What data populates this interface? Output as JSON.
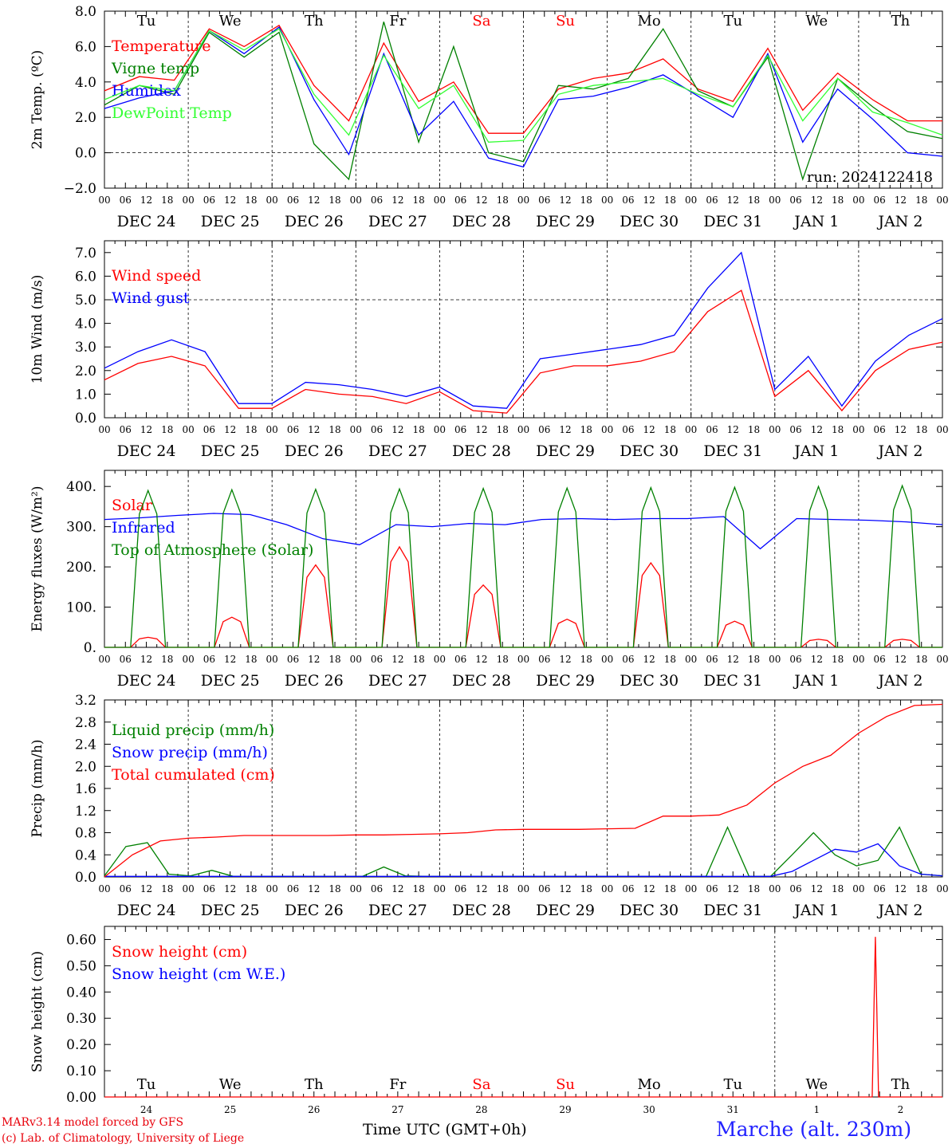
{
  "chart_data": [
    {
      "type": "line",
      "ylabel": "2m Temp. (ºC)",
      "ylim": [
        -2,
        8
      ],
      "yticks": [
        "8.0",
        "6.0",
        "4.0",
        "2.0",
        "0.0",
        "−2.0"
      ],
      "ref_line": 0,
      "weekday_labels": [
        "Tu",
        "We",
        "Th",
        "Fr",
        "Sa",
        "Su",
        "Mo",
        "Tu",
        "We",
        "Th"
      ],
      "date_labels": [
        "DEC 24",
        "DEC 25",
        "DEC 26",
        "DEC 27",
        "DEC 28",
        "DEC 29",
        "DEC 30",
        "DEC 31",
        "JAN  1",
        "JAN  2"
      ],
      "hour_labels": [
        "00",
        "06",
        "12",
        "18"
      ],
      "annotation": "run: 2024122418",
      "x_hours_step": 12,
      "series": [
        {
          "name": "Temperature",
          "color": "#ff0000",
          "values": [
            3.5,
            4.3,
            4.1,
            7.0,
            6.0,
            7.2,
            3.8,
            1.8,
            6.2,
            2.9,
            4.0,
            1.1,
            1.1,
            3.6,
            4.2,
            4.5,
            5.3,
            3.6,
            2.9,
            5.9,
            2.4,
            4.5,
            3.0,
            1.8,
            1.8
          ]
        },
        {
          "name": "Vigne temp",
          "color": "#008000",
          "values": [
            2.7,
            3.8,
            3.3,
            6.8,
            5.4,
            6.8,
            0.5,
            -1.5,
            7.4,
            0.6,
            6.0,
            0.0,
            -0.5,
            3.8,
            3.6,
            4.2,
            7.0,
            3.5,
            2.6,
            5.4,
            -1.5,
            4.2,
            2.6,
            1.2,
            0.8
          ]
        },
        {
          "name": "Humidex",
          "color": "#0000ff",
          "values": [
            2.5,
            3.1,
            3.5,
            6.9,
            5.6,
            7.1,
            3.0,
            -0.1,
            5.6,
            1.0,
            2.9,
            -0.3,
            -0.8,
            3.0,
            3.2,
            3.7,
            4.4,
            3.2,
            2.0,
            5.6,
            0.6,
            3.6,
            1.9,
            0.0,
            -0.2
          ]
        },
        {
          "name": "DewPoint Temp",
          "color": "#33ff33",
          "values": [
            3.0,
            3.8,
            3.5,
            6.9,
            5.8,
            7.0,
            3.3,
            1.0,
            5.5,
            2.5,
            3.8,
            0.6,
            0.7,
            3.3,
            3.8,
            4.0,
            4.2,
            3.3,
            2.6,
            5.5,
            1.8,
            4.2,
            2.3,
            1.7,
            1.0
          ]
        }
      ]
    },
    {
      "type": "line",
      "ylabel": "10m Wind (m/s)",
      "ylim": [
        0,
        7.5
      ],
      "yticks": [
        "7.0",
        "6.0",
        "5.0",
        "4.0",
        "3.0",
        "2.0",
        "1.0",
        "0.0"
      ],
      "ref_line": 5,
      "date_labels": [
        "DEC 24",
        "DEC 25",
        "DEC 26",
        "DEC 27",
        "DEC 28",
        "DEC 29",
        "DEC 30",
        "DEC 31",
        "JAN  1",
        "JAN  2"
      ],
      "hour_labels": [
        "00",
        "06",
        "12",
        "18"
      ],
      "x_hours_step": 12,
      "series": [
        {
          "name": "Wind speed",
          "color": "#ff0000",
          "values": [
            1.6,
            2.3,
            2.6,
            2.2,
            0.4,
            0.4,
            1.2,
            1.0,
            0.9,
            0.6,
            1.1,
            0.3,
            0.2,
            1.9,
            2.2,
            2.2,
            2.4,
            2.8,
            4.5,
            5.4,
            0.9,
            2.0,
            0.3,
            2.0,
            2.9,
            3.2
          ]
        },
        {
          "name": "Wind gust",
          "color": "#0000ff",
          "values": [
            2.1,
            2.8,
            3.3,
            2.8,
            0.6,
            0.6,
            1.5,
            1.4,
            1.2,
            0.9,
            1.3,
            0.5,
            0.4,
            2.5,
            2.7,
            2.9,
            3.1,
            3.5,
            5.5,
            7.0,
            1.2,
            2.6,
            0.5,
            2.4,
            3.5,
            4.2
          ]
        }
      ]
    },
    {
      "type": "line",
      "ylabel": "Energy fluxes (W/m²)",
      "ylim": [
        0,
        440
      ],
      "yticks": [
        "400.",
        "300.",
        "200.",
        "100.",
        "0."
      ],
      "date_labels": [
        "DEC 24",
        "DEC 25",
        "DEC 26",
        "DEC 27",
        "DEC 28",
        "DEC 29",
        "DEC 30",
        "DEC 31",
        "JAN  1",
        "JAN  2"
      ],
      "hour_labels": [
        "00",
        "06",
        "12",
        "18"
      ],
      "x_hours_step": 12,
      "series": [
        {
          "name": "Solar",
          "color": "#ff0000",
          "daily_noon_peaks": [
            25,
            75,
            205,
            250,
            155,
            70,
            210,
            65,
            20,
            20
          ]
        },
        {
          "name": "Infrared",
          "color": "#0000ff",
          "values": [
            318,
            322,
            328,
            333,
            330,
            305,
            270,
            255,
            305,
            300,
            308,
            305,
            318,
            320,
            318,
            320,
            320,
            325,
            245,
            320,
            318,
            316,
            312,
            305
          ]
        },
        {
          "name": "Top of Atmosphere (Solar)",
          "color": "#008000",
          "daily_noon_peaks": [
            390,
            392,
            393,
            394,
            395,
            396,
            397,
            398,
            400,
            402
          ]
        }
      ]
    },
    {
      "type": "line",
      "ylabel": "Precip (mm/h)",
      "ylim": [
        0,
        3.2
      ],
      "yticks": [
        "3.2",
        "2.8",
        "2.4",
        "2.0",
        "1.6",
        "1.2",
        "0.8",
        "0.4",
        "0.0"
      ],
      "date_labels": [
        "DEC 24",
        "DEC 25",
        "DEC 26",
        "DEC 27",
        "DEC 28",
        "DEC 29",
        "DEC 30",
        "DEC 31",
        "JAN  1",
        "JAN  2"
      ],
      "hour_labels": [
        "00",
        "06",
        "12",
        "18"
      ],
      "x_hours_step": 12,
      "series": [
        {
          "name": "Liquid precip (mm/h)",
          "color": "#008000",
          "values": [
            0.02,
            0.55,
            0.62,
            0.05,
            0.02,
            0.12,
            0.01,
            0.01,
            0.01,
            0.01,
            0.01,
            0.01,
            0.01,
            0.18,
            0.02,
            0.01,
            0.01,
            0.01,
            0.01,
            0.01,
            0.01,
            0.01,
            0.01,
            0.01,
            0.01,
            0.01,
            0.01,
            0.01,
            0.01,
            0.9,
            0.01,
            0.01,
            0.4,
            0.8,
            0.4,
            0.2,
            0.3,
            0.9,
            0.05,
            0.02
          ]
        },
        {
          "name": "Snow precip (mm/h)",
          "color": "#0000ff",
          "values": [
            0.01,
            0.01,
            0.01,
            0.01,
            0.01,
            0.01,
            0.01,
            0.01,
            0.01,
            0.01,
            0.01,
            0.01,
            0.01,
            0.01,
            0.01,
            0.01,
            0.01,
            0.01,
            0.01,
            0.01,
            0.01,
            0.01,
            0.01,
            0.01,
            0.01,
            0.01,
            0.01,
            0.01,
            0.01,
            0.01,
            0.01,
            0.01,
            0.1,
            0.3,
            0.5,
            0.45,
            0.6,
            0.2,
            0.05,
            0.02
          ]
        },
        {
          "name": "Total cumulated (cm)",
          "color": "#ff0000",
          "values": [
            0.0,
            0.4,
            0.65,
            0.7,
            0.72,
            0.75,
            0.75,
            0.75,
            0.75,
            0.76,
            0.76,
            0.77,
            0.78,
            0.8,
            0.85,
            0.86,
            0.86,
            0.86,
            0.87,
            0.88,
            1.1,
            1.1,
            1.12,
            1.3,
            1.7,
            2.0,
            2.2,
            2.6,
            2.9,
            3.1,
            3.12
          ]
        }
      ]
    },
    {
      "type": "line",
      "ylabel": "Snow height (cm)",
      "ylim": [
        0,
        0.65
      ],
      "yticks": [
        "0.60",
        "0.50",
        "0.40",
        "0.30",
        "0.20",
        "0.10",
        "0.00"
      ],
      "weekday_labels": [
        "Tu",
        "We",
        "Th",
        "Fr",
        "Sa",
        "Su",
        "Mo",
        "Tu",
        "We",
        "Th"
      ],
      "day_numbers": [
        "24",
        "25",
        "26",
        "27",
        "28",
        "29",
        "30",
        "31",
        "1",
        "2"
      ],
      "x_hours_step": 24,
      "series": [
        {
          "name": "Snow height (cm)",
          "color": "#ff0000",
          "spike": {
            "day": 9.2,
            "value": 0.61
          }
        },
        {
          "name": "Snow height (cm W.E.)",
          "color": "#0000ff"
        }
      ]
    }
  ],
  "weekend_color": "#ff0000",
  "footer": {
    "credit_line1": "MARv3.14 model forced by GFS",
    "credit_line2": "(c) Lab. of Climatology, University of Liege",
    "axis_label": "Time UTC (GMT+0h)",
    "station": "Marche (alt. 230m)"
  }
}
